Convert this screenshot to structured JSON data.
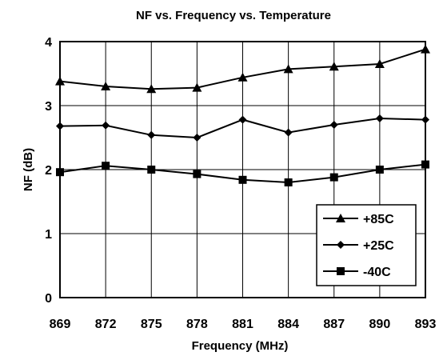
{
  "chart_data": {
    "type": "line",
    "title": "NF vs. Frequency vs. Temperature",
    "xlabel": "Frequency (MHz)",
    "ylabel": "NF (dB)",
    "x": [
      869,
      872,
      875,
      878,
      881,
      884,
      887,
      890,
      893
    ],
    "xlim": [
      869,
      893
    ],
    "ylim": [
      0,
      4
    ],
    "yticks": [
      0,
      1,
      2,
      3,
      4
    ],
    "grid": true,
    "legend_position": "bottom-right",
    "series": [
      {
        "name": "+85C",
        "marker": "triangle",
        "values": [
          3.38,
          3.3,
          3.26,
          3.28,
          3.44,
          3.57,
          3.61,
          3.65,
          3.88
        ]
      },
      {
        "name": "+25C",
        "marker": "diamond",
        "values": [
          2.68,
          2.69,
          2.54,
          2.5,
          2.78,
          2.58,
          2.7,
          2.8,
          2.78
        ]
      },
      {
        "name": "-40C",
        "marker": "square",
        "values": [
          1.96,
          2.06,
          2.0,
          1.93,
          1.84,
          1.8,
          1.88,
          2.0,
          2.08
        ]
      }
    ]
  }
}
